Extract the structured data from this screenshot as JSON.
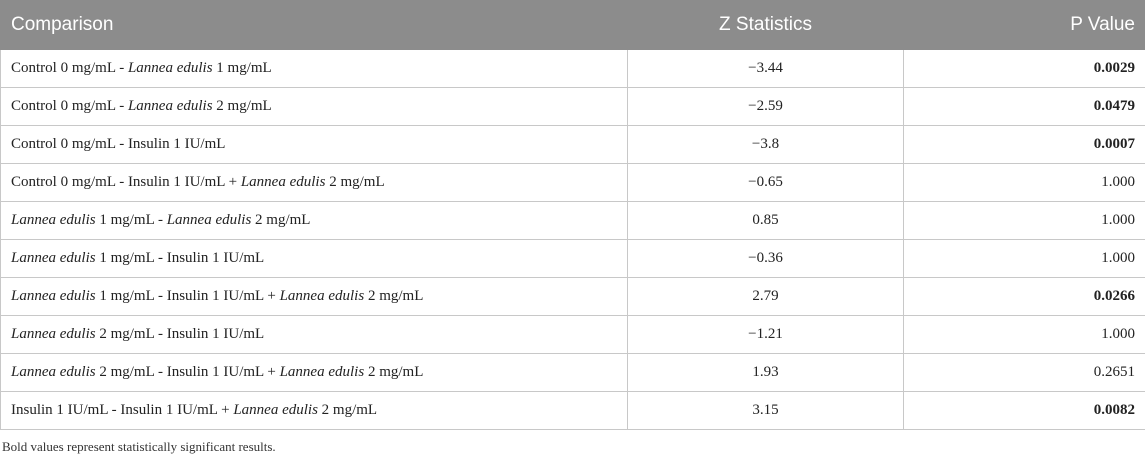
{
  "table": {
    "headers": [
      "Comparison",
      "Z Statistics",
      "P Value"
    ],
    "rows": [
      {
        "comparison": [
          {
            "t": "Control 0 mg/mL - ",
            "i": false
          },
          {
            "t": "Lannea edulis",
            "i": true
          },
          {
            "t": " 1 mg/mL",
            "i": false
          }
        ],
        "z": "−3.44",
        "p": "0.0029",
        "sig": true
      },
      {
        "comparison": [
          {
            "t": "Control 0 mg/mL - ",
            "i": false
          },
          {
            "t": "Lannea edulis",
            "i": true
          },
          {
            "t": " 2 mg/mL",
            "i": false
          }
        ],
        "z": "−2.59",
        "p": "0.0479",
        "sig": true
      },
      {
        "comparison": [
          {
            "t": "Control 0 mg/mL - Insulin 1 IU/mL",
            "i": false
          }
        ],
        "z": "−3.8",
        "p": "0.0007",
        "sig": true
      },
      {
        "comparison": [
          {
            "t": "Control 0 mg/mL - Insulin 1 IU/mL + ",
            "i": false
          },
          {
            "t": "Lannea edulis",
            "i": true
          },
          {
            "t": " 2 mg/mL",
            "i": false
          }
        ],
        "z": "−0.65",
        "p": "1.000",
        "sig": false
      },
      {
        "comparison": [
          {
            "t": "Lannea edulis",
            "i": true
          },
          {
            "t": " 1 mg/mL - ",
            "i": false
          },
          {
            "t": "Lannea edulis",
            "i": true
          },
          {
            "t": " 2 mg/mL",
            "i": false
          }
        ],
        "z": "0.85",
        "p": "1.000",
        "sig": false
      },
      {
        "comparison": [
          {
            "t": "Lannea edulis",
            "i": true
          },
          {
            "t": " 1 mg/mL - Insulin 1 IU/mL",
            "i": false
          }
        ],
        "z": "−0.36",
        "p": "1.000",
        "sig": false
      },
      {
        "comparison": [
          {
            "t": "Lannea edulis",
            "i": true
          },
          {
            "t": " 1 mg/mL - Insulin 1 IU/mL + ",
            "i": false
          },
          {
            "t": "Lannea edulis",
            "i": true
          },
          {
            "t": " 2 mg/mL",
            "i": false
          }
        ],
        "z": "2.79",
        "p": "0.0266",
        "sig": true
      },
      {
        "comparison": [
          {
            "t": "Lannea edulis",
            "i": true
          },
          {
            "t": " 2 mg/mL - Insulin 1 IU/mL",
            "i": false
          }
        ],
        "z": "−1.21",
        "p": "1.000",
        "sig": false
      },
      {
        "comparison": [
          {
            "t": "Lannea edulis",
            "i": true
          },
          {
            "t": " 2 mg/mL - Insulin 1 IU/mL + ",
            "i": false
          },
          {
            "t": "Lannea edulis",
            "i": true
          },
          {
            "t": " 2 mg/mL",
            "i": false
          }
        ],
        "z": "1.93",
        "p": "0.2651",
        "sig": false
      },
      {
        "comparison": [
          {
            "t": "Insulin 1 IU/mL - Insulin 1 IU/mL + ",
            "i": false
          },
          {
            "t": "Lannea edulis",
            "i": true
          },
          {
            "t": " 2 mg/mL",
            "i": false
          }
        ],
        "z": "3.15",
        "p": "0.0082",
        "sig": true
      }
    ]
  },
  "footnote": "Bold values represent statistically significant results.",
  "colors": {
    "header_bg": "#8c8c8c",
    "header_text": "#ffffff",
    "border": "#c8c8c8"
  }
}
